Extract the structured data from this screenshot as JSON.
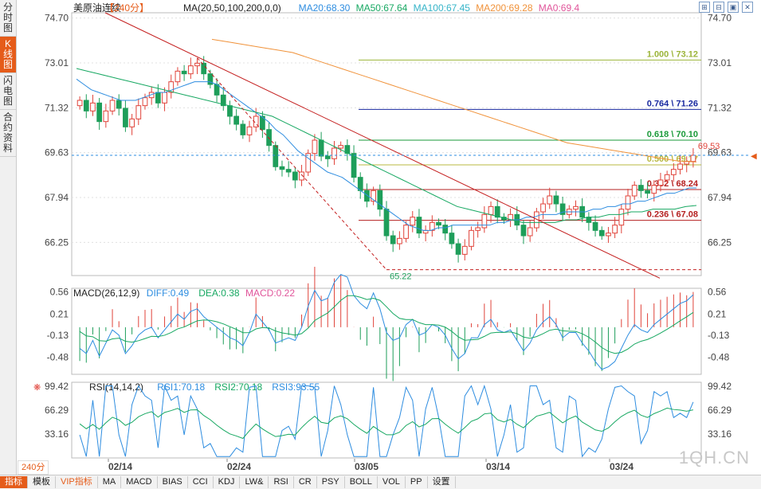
{
  "side_tabs": [
    {
      "label": "分时图",
      "active": false
    },
    {
      "label": "K线图",
      "active": true
    },
    {
      "label": "闪电图",
      "active": false
    },
    {
      "label": "合约资料",
      "active": false
    }
  ],
  "top_icons": [
    "expand-icon",
    "overlay-icon",
    "shrink-icon",
    "close-icon"
  ],
  "main": {
    "symbol": "美原油连续",
    "period": "【240分】",
    "ma_header": "MA(20,50,100,200,0,0)",
    "ma20": "MA20:68.30",
    "ma50": "MA50:67.64",
    "ma100": "MA100:67.45",
    "ma200": "MA200:69.28",
    "ma0": "MA0:69.4",
    "y_ticks": [
      "74.70",
      "73.01",
      "71.32",
      "69.63",
      "67.94",
      "66.25"
    ],
    "y_ticks_right": [
      "74.70",
      "73.01",
      "71.32",
      "69.63",
      "67.94",
      "66.25"
    ],
    "current_price_marker": "69.53",
    "low_marker": "65.22",
    "fib_levels": [
      {
        "label": "1.000 \\ 73.12",
        "value": 73.12,
        "color": "#9cb53a"
      },
      {
        "label": "0.764 \\ 71.26",
        "value": 71.26,
        "color": "#1a2aa0"
      },
      {
        "label": "0.618 \\ 70.10",
        "value": 70.1,
        "color": "#1a9a3a"
      },
      {
        "label": "0.500 \\ 69.17",
        "value": 69.17,
        "color": "#b8b840"
      },
      {
        "label": "0.382 \\ 68.24",
        "value": 68.24,
        "color": "#b52020"
      },
      {
        "label": "0.236 \\ 67.08",
        "value": 67.08,
        "color": "#b52020"
      }
    ]
  },
  "macd": {
    "header": "MACD(26,12,9)",
    "diff": "DIFF:0.49",
    "dea": "DEA:0.38",
    "macd": "MACD:0.22",
    "y_ticks": [
      "0.56",
      "0.21",
      "-0.13",
      "-0.48"
    ],
    "y_ticks_right": [
      "0.56",
      "0.21",
      "-0.13",
      "-0.48"
    ]
  },
  "rsi": {
    "header": "RSI(14,14,2)",
    "rsi1": "RSI1:70.18",
    "rsi2": "RSI2:70.18",
    "rsi3": "RSI3:93.55",
    "y_ticks": [
      "99.42",
      "66.29",
      "33.16"
    ],
    "y_ticks_right": [
      "99.42",
      "66.29",
      "33.16"
    ]
  },
  "x_dates": [
    "02/14",
    "02/24",
    "03/05",
    "03/14",
    "03/24"
  ],
  "period_badge": "240分",
  "watermark": "1QH.CN",
  "bottom_tabs": [
    "指标",
    "模板",
    "VIP指标",
    "MA",
    "MACD",
    "BIAS",
    "CCI",
    "KDJ",
    "LW&",
    "RSI",
    "CR",
    "PSY",
    "BOLL",
    "VOL",
    "PP",
    "设置"
  ],
  "colors": {
    "up": "#e0433a",
    "down": "#1e9e5a",
    "ma20": "#2e8de0",
    "ma50": "#17a862",
    "ma100": "#35b4c8",
    "ma200": "#f0923a",
    "trend": "#c41e1e",
    "grid": "#e0e0e0",
    "axis_text": "#444"
  },
  "chart_data": {
    "type": "candlestick",
    "price_range": [
      65.0,
      74.9
    ],
    "close_series": [
      71.6,
      71.2,
      71.5,
      70.8,
      71.2,
      71.6,
      71.3,
      70.6,
      70.9,
      71.4,
      71.7,
      71.9,
      71.5,
      71.9,
      72.3,
      72.7,
      72.6,
      72.9,
      73.0,
      72.6,
      72.2,
      71.8,
      71.4,
      71.0,
      70.7,
      70.3,
      70.6,
      71.0,
      70.5,
      69.9,
      69.1,
      69.0,
      68.9,
      68.6,
      68.9,
      69.6,
      70.1,
      69.5,
      69.4,
      69.8,
      69.9,
      69.6,
      68.7,
      68.2,
      67.8,
      68.2,
      67.5,
      66.5,
      66.2,
      66.4,
      66.9,
      67.2,
      66.6,
      66.7,
      67.0,
      66.9,
      66.6,
      66.2,
      65.8,
      66.1,
      66.7,
      66.8,
      67.3,
      67.6,
      67.2,
      67.1,
      67.3,
      66.9,
      66.5,
      66.8,
      67.4,
      67.7,
      68.0,
      67.7,
      67.3,
      67.5,
      67.6,
      67.2,
      67.0,
      66.7,
      66.5,
      66.6,
      66.9,
      67.5,
      68.0,
      68.4,
      68.2,
      68.1,
      68.4,
      68.6,
      68.8,
      69.0,
      69.2,
      69.3,
      69.53
    ],
    "ma20": [
      72.4,
      72.2,
      72.0,
      71.9,
      71.8,
      71.7,
      71.6,
      71.6,
      71.6,
      71.7,
      71.8,
      71.9,
      71.9,
      72.0,
      72.1,
      72.2,
      72.3,
      72.3,
      72.3,
      72.2,
      72.0,
      71.8,
      71.6,
      71.4,
      71.2,
      71.0,
      70.8,
      70.5,
      70.3,
      70.0,
      69.7,
      69.5,
      69.3,
      69.1,
      68.9,
      68.8,
      68.7,
      68.5,
      68.3,
      68.1,
      67.9,
      67.7,
      67.5,
      67.3,
      67.1,
      66.9,
      66.8,
      66.7,
      66.7,
      66.8,
      66.8,
      66.9,
      66.9,
      66.9,
      66.9,
      66.9,
      66.9,
      67.0,
      67.0,
      67.1,
      67.1,
      67.2,
      67.2,
      67.3,
      67.3,
      67.3,
      67.4,
      67.4,
      67.4,
      67.4,
      67.5,
      67.5,
      67.6,
      67.6,
      67.7,
      67.7,
      67.8,
      67.8,
      67.9,
      68.0,
      68.1,
      68.1,
      68.2,
      68.3,
      68.3
    ],
    "ma50": [
      72.8,
      72.7,
      72.6,
      72.5,
      72.4,
      72.3,
      72.2,
      72.1,
      72.0,
      71.9,
      71.8,
      71.7,
      71.6,
      71.5,
      71.4,
      71.3,
      71.2,
      71.1,
      71.0,
      70.8,
      70.6,
      70.4,
      70.2,
      70.0,
      69.8,
      69.6,
      69.4,
      69.2,
      69.0,
      68.8,
      68.6,
      68.4,
      68.2,
      68.0,
      67.8,
      67.6,
      67.5,
      67.4,
      67.3,
      67.2,
      67.1,
      67.0,
      67.0,
      67.0,
      67.0,
      67.1,
      67.1,
      67.2,
      67.2,
      67.3,
      67.3,
      67.4,
      67.4,
      67.5,
      67.5,
      67.5,
      67.6,
      67.64
    ],
    "ma200": [
      73.9,
      73.8,
      73.7,
      73.6,
      73.5,
      73.4,
      73.2,
      73.0,
      72.8,
      72.6,
      72.4,
      72.2,
      72.0,
      71.8,
      71.6,
      71.4,
      71.2,
      71.0,
      70.8,
      70.6,
      70.4,
      70.2,
      70.0,
      69.9,
      69.8,
      69.7,
      69.6,
      69.5,
      69.4,
      69.3,
      69.28
    ],
    "macd": {
      "range": [
        -0.75,
        0.62
      ],
      "diff_last": 0.49,
      "dea_last": 0.38,
      "macd_last": 0.22
    },
    "rsi": {
      "range": [
        0,
        105
      ],
      "rsi1_last": 70.18,
      "rsi2_last": 70.18,
      "rsi3_last": 93.55
    }
  }
}
